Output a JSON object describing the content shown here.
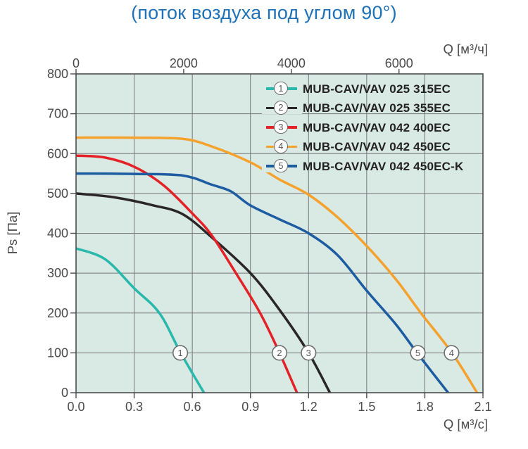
{
  "title": "(поток воздуха под углом 90°)",
  "colors": {
    "title_text": "#1e72b7",
    "plot_bg": "#d9e9e4",
    "grid": "#757678",
    "axis_border": "#4b4c4e",
    "tick_text": "#4b4b4d",
    "legend_text": "#232122",
    "marker_stroke": "#6d6e70",
    "marker_text": "#57585a"
  },
  "chart_data": {
    "type": "line",
    "title": "(поток воздуха под углом 90°)",
    "grid": true,
    "legend_position": "top-right",
    "x_axis_bottom": {
      "label": "Q [м³/с]",
      "range": [
        0,
        2.1
      ],
      "tick_values": [
        0,
        0.3,
        0.6,
        0.9,
        1.2,
        1.5,
        1.8,
        2.1
      ],
      "tick_labels": [
        "0.0",
        "0.3",
        "0.6",
        "0.9",
        "1.2",
        "1.5",
        "1.8",
        "2.1"
      ]
    },
    "x_axis_top": {
      "label": "Q [м³/ч]",
      "units_per_bottom_unit": 3600,
      "tick_values": [
        0,
        2000,
        4000,
        6000
      ],
      "tick_labels": [
        "0",
        "2000",
        "4000",
        "6000"
      ]
    },
    "y_axis": {
      "label": "Ps [Па]",
      "range": [
        0,
        800
      ],
      "tick_values": [
        0,
        100,
        200,
        300,
        400,
        500,
        600,
        700,
        800
      ],
      "tick_labels": [
        "0",
        "100",
        "200",
        "300",
        "400",
        "500",
        "600",
        "700",
        "800"
      ]
    },
    "series": [
      {
        "number": "1",
        "name": "MUB-CAV/VAV 025 315EC",
        "color": "#29b8ab",
        "points": [
          [
            0,
            362
          ],
          [
            0.15,
            335
          ],
          [
            0.3,
            262
          ],
          [
            0.43,
            200
          ],
          [
            0.54,
            100
          ],
          [
            0.66,
            0
          ]
        ]
      },
      {
        "number": "2",
        "name": "MUB-CAV/VAV 025 355EC",
        "color": "#2a2627",
        "points": [
          [
            0,
            500
          ],
          [
            0.2,
            490
          ],
          [
            0.4,
            470
          ],
          [
            0.55,
            448
          ],
          [
            0.7,
            390
          ],
          [
            0.9,
            300
          ],
          [
            1.05,
            208
          ],
          [
            1.2,
            100
          ],
          [
            1.31,
            0
          ]
        ]
      },
      {
        "number": "3",
        "name": "MUB-CAV/VAV 042 400EC",
        "color": "#e32126",
        "points": [
          [
            0,
            595
          ],
          [
            0.15,
            590
          ],
          [
            0.3,
            567
          ],
          [
            0.45,
            521
          ],
          [
            0.6,
            450
          ],
          [
            0.7,
            395
          ],
          [
            0.825,
            300
          ],
          [
            0.95,
            200
          ],
          [
            1.05,
            100
          ],
          [
            1.14,
            0
          ]
        ]
      },
      {
        "number": "4",
        "name": "MUB-CAV/VAV 042 450EC",
        "color": "#f5a12d",
        "points": [
          [
            0,
            640
          ],
          [
            0.3,
            640
          ],
          [
            0.55,
            637
          ],
          [
            0.7,
            618
          ],
          [
            0.9,
            578
          ],
          [
            1.05,
            535
          ],
          [
            1.2,
            497
          ],
          [
            1.35,
            440
          ],
          [
            1.5,
            368
          ],
          [
            1.65,
            285
          ],
          [
            1.78,
            200
          ],
          [
            1.94,
            100
          ],
          [
            2.07,
            0
          ]
        ]
      },
      {
        "number": "5",
        "name": "MUB-CAV/VAV 042 450EC-K",
        "color": "#1d5ca0",
        "points": [
          [
            0,
            550
          ],
          [
            0.3,
            549
          ],
          [
            0.55,
            545
          ],
          [
            0.7,
            522
          ],
          [
            0.8,
            505
          ],
          [
            0.9,
            470
          ],
          [
            1.05,
            435
          ],
          [
            1.2,
            400
          ],
          [
            1.35,
            345
          ],
          [
            1.5,
            256
          ],
          [
            1.65,
            172
          ],
          [
            1.76,
            100
          ],
          [
            1.92,
            0
          ]
        ]
      }
    ],
    "curve_markers": [
      {
        "label": "1",
        "x": 0.538,
        "y": 100
      },
      {
        "label": "2",
        "x": 1.05,
        "y": 100
      },
      {
        "label": "3",
        "x": 1.2,
        "y": 100
      },
      {
        "label": "5",
        "x": 1.764,
        "y": 100
      },
      {
        "label": "4",
        "x": 1.938,
        "y": 100
      }
    ]
  }
}
